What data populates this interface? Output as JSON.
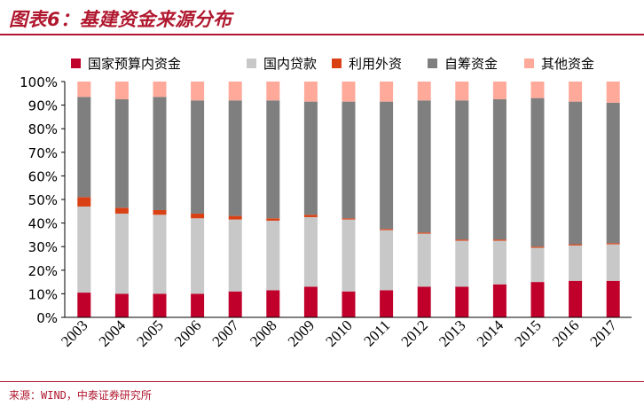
{
  "header": {
    "title": "图表6：基建资金来源分布"
  },
  "footer": {
    "source": "来源：WIND，中泰证券研究所"
  },
  "colors": {
    "brand": "#b0182f"
  },
  "chart_data": {
    "type": "bar",
    "stacked": true,
    "categories": [
      "2003",
      "2004",
      "2005",
      "2006",
      "2007",
      "2008",
      "2009",
      "2010",
      "2011",
      "2012",
      "2013",
      "2014",
      "2015",
      "2016",
      "2017"
    ],
    "ylim": [
      0,
      100
    ],
    "yticks": [
      "0%",
      "10%",
      "20%",
      "30%",
      "40%",
      "50%",
      "60%",
      "70%",
      "80%",
      "90%",
      "100%"
    ],
    "grid": false,
    "legend_position": "top",
    "series": [
      {
        "name": "国家预算内资金",
        "color": "#c0002b",
        "values": [
          10.5,
          10.0,
          10.0,
          10.0,
          11.0,
          11.5,
          13.0,
          11.0,
          11.5,
          13.0,
          13.0,
          14.0,
          15.0,
          15.5,
          15.5
        ]
      },
      {
        "name": "国内贷款",
        "color": "#c8c8c8",
        "values": [
          36.5,
          34.0,
          33.5,
          32.0,
          30.5,
          29.5,
          29.5,
          30.5,
          25.5,
          22.5,
          19.5,
          18.5,
          14.5,
          15.0,
          15.5
        ]
      },
      {
        "name": "利用外资",
        "color": "#d94114",
        "values": [
          4.0,
          2.5,
          2.0,
          2.0,
          1.5,
          1.0,
          1.0,
          0.5,
          0.5,
          0.5,
          0.5,
          0.5,
          0.5,
          0.5,
          0.5
        ]
      },
      {
        "name": "自筹资金",
        "color": "#7f7f7f",
        "values": [
          42.5,
          46.0,
          48.0,
          48.0,
          49.0,
          50.0,
          48.0,
          49.5,
          54.0,
          56.0,
          59.0,
          59.5,
          63.0,
          60.5,
          59.5
        ]
      },
      {
        "name": "其他资金",
        "color": "#ffa99a",
        "values": [
          6.5,
          7.5,
          6.5,
          8.0,
          8.0,
          8.0,
          8.5,
          8.5,
          8.5,
          8.0,
          8.0,
          7.5,
          7.0,
          8.5,
          9.0
        ]
      }
    ]
  }
}
